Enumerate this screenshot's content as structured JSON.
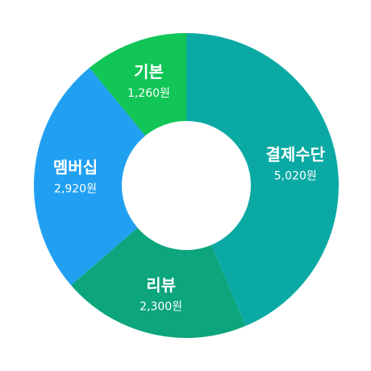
{
  "chart_data": {
    "type": "pie",
    "donut": true,
    "slices": [
      {
        "label": "결제수단",
        "value": 5020,
        "value_text": "5,020원",
        "color": "#0BA9A4"
      },
      {
        "label": "리뷰",
        "value": 2300,
        "value_text": "2,300원",
        "color": "#0CA57C"
      },
      {
        "label": "멤버십",
        "value": 2920,
        "value_text": "2,920원",
        "color": "#21A0F2"
      },
      {
        "label": "기본",
        "value": 1260,
        "value_text": "1,260원",
        "color": "#11C557"
      }
    ]
  }
}
